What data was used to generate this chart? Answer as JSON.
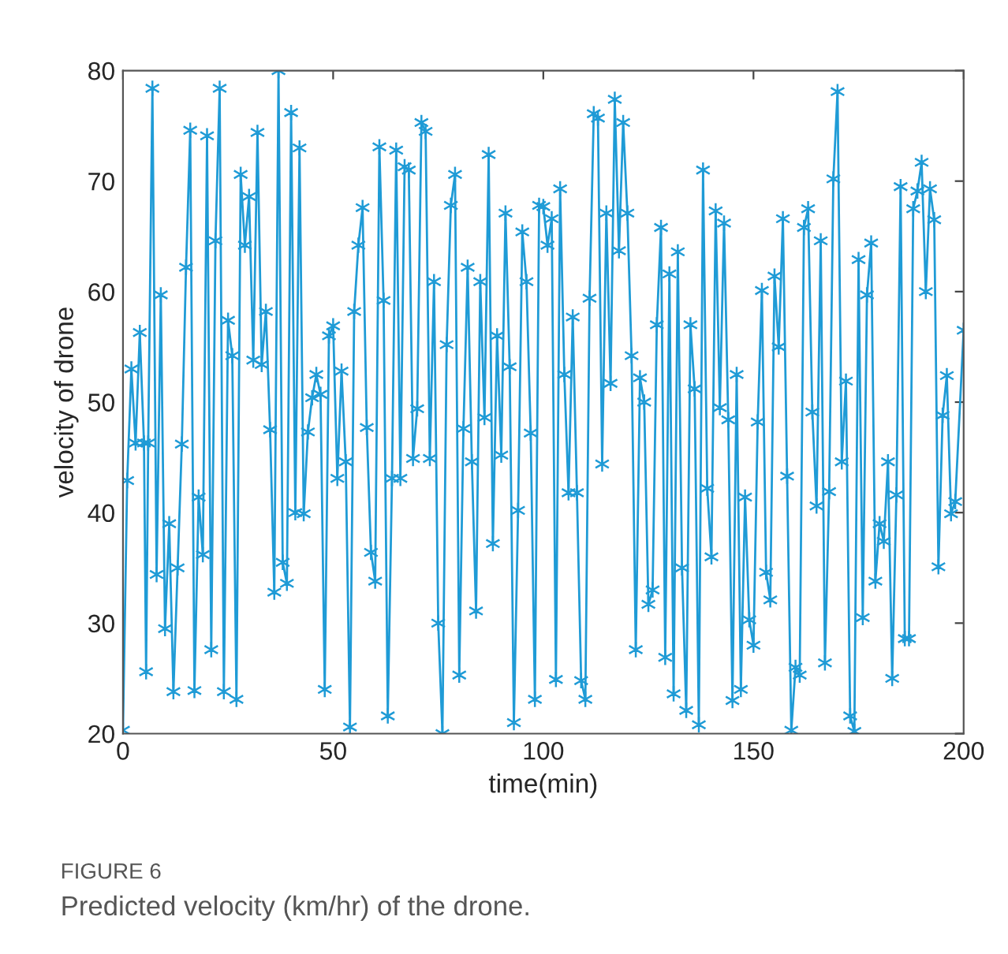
{
  "chart_data": {
    "type": "line",
    "xlabel": "time(min)",
    "ylabel": "velocity of drone",
    "series": [
      {
        "color": "#1f9bd6",
        "marker": "cross",
        "x": [
          0,
          1,
          2,
          3,
          4,
          5,
          5.5,
          6,
          7,
          8,
          9,
          10,
          11,
          12,
          13,
          14,
          15,
          16,
          17,
          18,
          19,
          20,
          21,
          22,
          23,
          24,
          25,
          26,
          27,
          28,
          29,
          30,
          31,
          32,
          33,
          34,
          35,
          36,
          37,
          38,
          39,
          40,
          41,
          42,
          43,
          44,
          45,
          46,
          47,
          48,
          49,
          50,
          51,
          52,
          53,
          54,
          55,
          56,
          57,
          58,
          59,
          60,
          61,
          62,
          63,
          64,
          65,
          66,
          67,
          68,
          69,
          70,
          71,
          72,
          73,
          74,
          75,
          76,
          77,
          78,
          79,
          80,
          81,
          82,
          83,
          84,
          85,
          86,
          87,
          88,
          89,
          90,
          91,
          92,
          93,
          94,
          95,
          96,
          97,
          98,
          99,
          100,
          101,
          102,
          103,
          104,
          105,
          106,
          107,
          108,
          109,
          110,
          111,
          112,
          113,
          114,
          115,
          116,
          117,
          118,
          119,
          120,
          121,
          122,
          123,
          124,
          125,
          126,
          127,
          128,
          129,
          130,
          131,
          132,
          133,
          134,
          135,
          136,
          137,
          138,
          139,
          140,
          141,
          142,
          143,
          144,
          145,
          146,
          147,
          148,
          149,
          150,
          151,
          152,
          153,
          154,
          155,
          156,
          157,
          158,
          159,
          160,
          161,
          162,
          163,
          164,
          165,
          166,
          167,
          168,
          169,
          170,
          171,
          172,
          173,
          174,
          175,
          176,
          177,
          178,
          179,
          180,
          181,
          182,
          183,
          184,
          185,
          186,
          187,
          188,
          189,
          190,
          191,
          192,
          193,
          194,
          195,
          196,
          197,
          198,
          200
        ],
        "values": [
          20.3,
          42.9,
          53.0,
          46.3,
          56.3,
          46.3,
          25.6,
          46.3,
          78.4,
          34.4,
          59.7,
          29.5,
          39.0,
          23.8,
          35.0,
          46.2,
          62.2,
          74.6,
          23.9,
          41.4,
          36.2,
          74.1,
          27.6,
          64.6,
          78.4,
          23.8,
          57.4,
          54.2,
          23.1,
          70.6,
          64.2,
          68.6,
          53.8,
          74.4,
          53.4,
          58.2,
          47.5,
          32.8,
          80.0,
          35.5,
          33.6,
          76.2,
          40.0,
          73.0,
          39.9,
          47.3,
          50.4,
          52.5,
          50.7,
          24.0,
          56.0,
          56.9,
          43.1,
          52.8,
          44.6,
          20.6,
          58.2,
          64.2,
          67.6,
          47.7,
          36.4,
          33.8,
          73.1,
          59.2,
          21.6,
          43.1,
          72.8,
          43.1,
          71.3,
          71.0,
          44.9,
          49.4,
          75.3,
          74.5,
          44.9,
          60.9,
          30.0,
          20.0,
          55.2,
          67.8,
          70.6,
          25.3,
          47.6,
          62.2,
          44.6,
          31.1,
          60.9,
          48.6,
          72.4,
          37.2,
          56.0,
          45.2,
          67.1,
          53.2,
          21.0,
          40.2,
          65.4,
          60.9,
          47.2,
          23.1,
          67.8,
          67.7,
          64.2,
          66.6,
          24.9,
          69.3,
          52.5,
          41.8,
          57.7,
          41.8,
          24.8,
          23.1,
          59.4,
          76.1,
          75.7,
          44.4,
          67.1,
          51.7,
          77.4,
          63.7,
          75.3,
          67.1,
          54.2,
          27.6,
          52.2,
          50.0,
          31.7,
          33.0,
          57.0,
          65.8,
          26.9,
          61.6,
          23.6,
          63.6,
          35.0,
          22.1,
          57.0,
          51.2,
          20.8,
          71.0,
          42.2,
          36.0,
          67.3,
          49.5,
          66.2,
          48.4,
          23.0,
          52.5,
          24.0,
          41.4,
          30.3,
          28.0,
          48.2,
          60.1,
          34.6,
          32.1,
          61.4,
          55.0,
          66.6,
          43.3,
          20.3,
          26.0,
          25.3,
          65.8,
          67.5,
          49.1,
          40.6,
          64.6,
          26.4,
          41.9,
          70.2,
          78.1,
          44.6,
          51.9,
          21.6,
          20.2,
          62.9,
          30.5,
          59.7,
          64.4,
          33.8,
          39.0,
          37.4,
          44.6,
          25.0,
          41.6,
          69.5,
          28.6,
          28.6,
          67.5,
          69.1,
          71.7,
          60.0,
          69.3,
          66.5,
          35.1,
          48.8,
          52.4,
          39.9,
          41.0,
          56.5
        ]
      }
    ],
    "xlim": [
      0,
      200
    ],
    "xticks": [
      0,
      50,
      100,
      150,
      200
    ],
    "ylim": [
      20,
      80
    ],
    "yticks": [
      20,
      30,
      40,
      50,
      60,
      70,
      80
    ],
    "grid": false,
    "annotations": [
      "FIGURE 6",
      "Predicted velocity (km/hr) of the drone."
    ]
  }
}
